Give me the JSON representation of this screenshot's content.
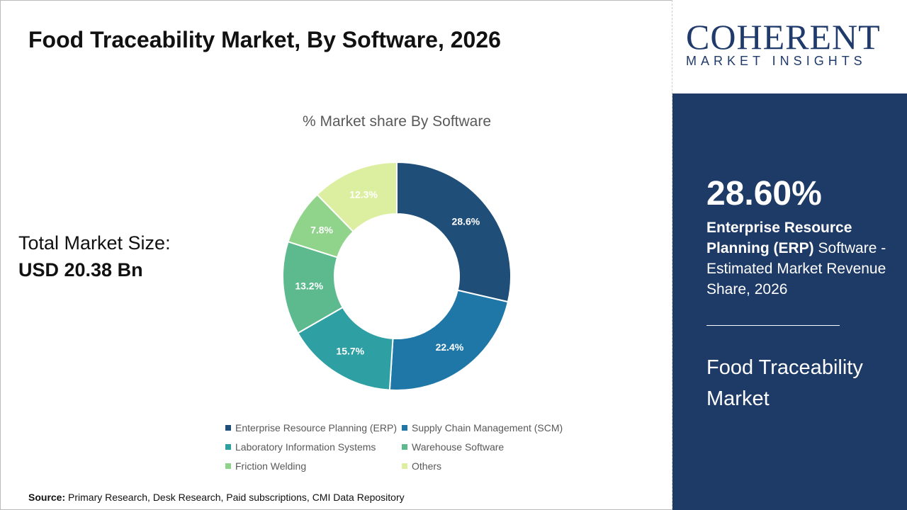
{
  "title": "Food Traceability Market, By Software, 2026",
  "total": {
    "label": "Total Market Size:",
    "value": "USD 20.38 Bn"
  },
  "source": {
    "label": "Source:",
    "text": " Primary Research, Desk Research, Paid subscriptions, CMI Data Repository"
  },
  "logo": {
    "name": "COHERENT",
    "tagline": "MARKET INSIGHTS"
  },
  "highlight": {
    "value": "28.60%",
    "bold": "Enterprise Resource Planning (ERP)",
    "rest": " Software - Estimated Market Revenue Share, 2026",
    "market": "Food Traceability Market"
  },
  "chart_data": {
    "type": "donut",
    "title": "% Market share By Software",
    "categories": [
      "Enterprise Resource Planning (ERP)",
      "Supply Chain Management (SCM)",
      "Laboratory Information Systems",
      "Warehouse Software",
      "Friction Welding",
      "Others"
    ],
    "values": [
      28.6,
      22.4,
      15.7,
      13.2,
      7.8,
      12.3
    ],
    "labels": [
      "28.6%",
      "22.4%",
      "15.7%",
      "13.2%",
      "7.8%",
      "12.3%"
    ],
    "colors": [
      "#1f4e79",
      "#1f77a8",
      "#2e9fa3",
      "#5dba8e",
      "#8fd48a",
      "#dcefa0"
    ],
    "legend": "bottom"
  }
}
